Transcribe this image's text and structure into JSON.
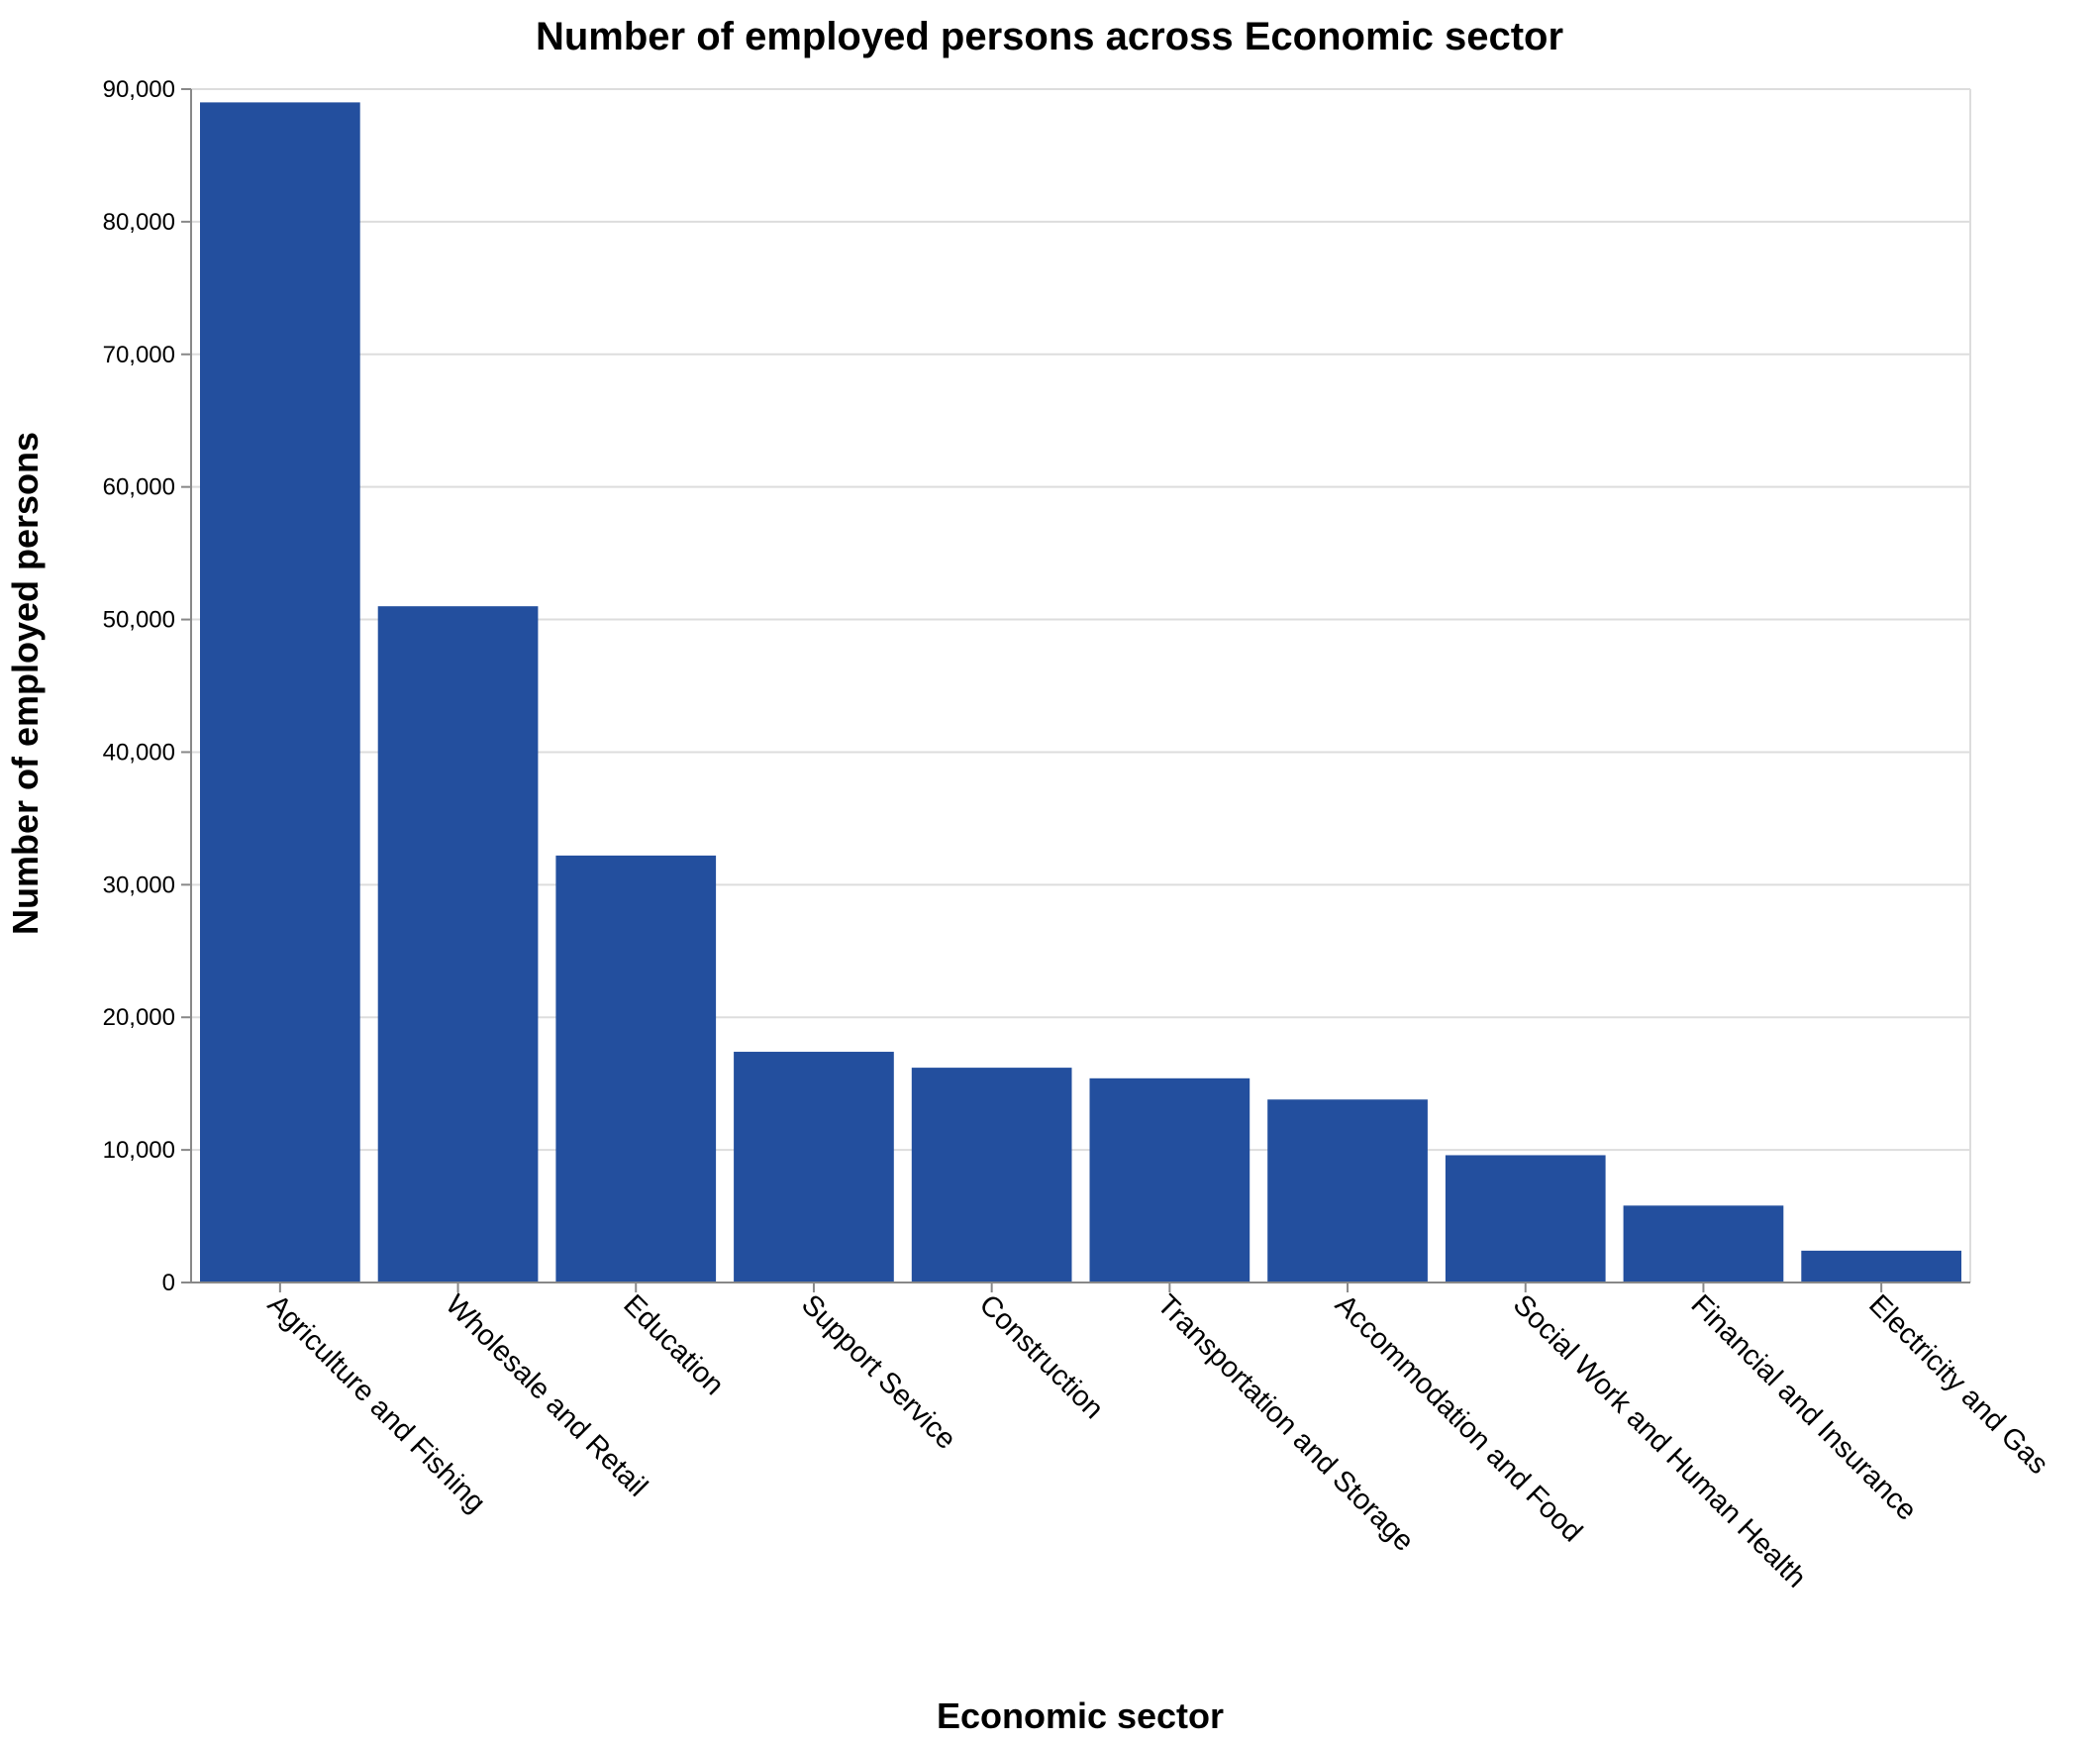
{
  "chart_data": {
    "type": "bar",
    "title": "Number of employed persons across Economic sector",
    "xlabel": "Economic sector",
    "ylabel": "Number of employed persons",
    "ylim": [
      0,
      90000
    ],
    "yticks": [
      0,
      10000,
      20000,
      30000,
      40000,
      50000,
      60000,
      70000,
      80000,
      90000
    ],
    "ytick_labels": [
      "0",
      "10,000",
      "20,000",
      "30,000",
      "40,000",
      "50,000",
      "60,000",
      "70,000",
      "80,000",
      "90,000"
    ],
    "grid": true,
    "bar_color": "#234f9e",
    "categories": [
      "Agriculture and Fishing",
      "Wholesale and Retail",
      "Education",
      "Support Service",
      "Construction",
      "Transportation and Storage",
      "Accommodation and Food",
      "Social Work and Human Health",
      "Financial and Insurance",
      "Electricity and Gas"
    ],
    "values": [
      89000,
      51000,
      32200,
      17400,
      16200,
      15400,
      13800,
      9600,
      5800,
      2400
    ]
  }
}
